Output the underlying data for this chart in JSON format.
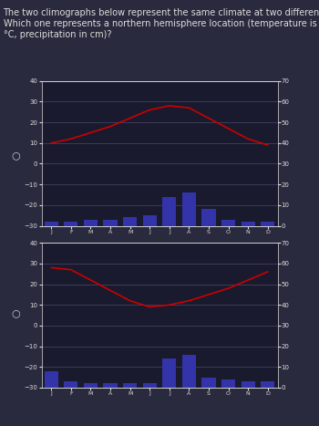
{
  "question_text": "The two climographs below represent the same climate at two different locations.\nWhich one represents a northern hemisphere location (temperature is measured in\n°C, precipitation in cm)?",
  "months": [
    "J",
    "F",
    "M",
    "A",
    "M",
    "J",
    "J",
    "A",
    "S",
    "O",
    "N",
    "D"
  ],
  "chart1": {
    "temp": [
      10,
      12,
      15,
      18,
      22,
      26,
      28,
      27,
      22,
      17,
      12,
      9
    ],
    "precip": [
      2,
      2,
      3,
      3,
      4,
      5,
      14,
      16,
      8,
      3,
      2,
      2
    ],
    "temp_color": "#cc0000",
    "precip_color": "#3333aa",
    "bg_color": "#1a1a2e",
    "grid_color": "#555577",
    "temp_ylim": [
      -30,
      40
    ],
    "precip_ylim": [
      0,
      70
    ],
    "temp_yticks": [
      -30,
      -20,
      -10,
      0,
      10,
      20,
      30,
      40
    ],
    "precip_yticks": [
      0,
      10,
      20,
      30,
      40,
      50,
      60,
      70
    ]
  },
  "chart2": {
    "temp": [
      28,
      27,
      22,
      17,
      12,
      9,
      10,
      12,
      15,
      18,
      22,
      26
    ],
    "precip": [
      8,
      3,
      2,
      2,
      2,
      2,
      14,
      16,
      5,
      4,
      3,
      3
    ],
    "temp_color": "#cc0000",
    "precip_color": "#3333aa",
    "bg_color": "#1a1a2e",
    "grid_color": "#555577",
    "temp_ylim": [
      -30,
      40
    ],
    "precip_ylim": [
      0,
      70
    ],
    "temp_yticks": [
      -30,
      -20,
      -10,
      0,
      10,
      20,
      30,
      40
    ],
    "precip_yticks": [
      0,
      10,
      20,
      30,
      40,
      50,
      60,
      70
    ]
  },
  "radio_color": "#cccccc",
  "text_color": "#dddddd",
  "bg_main": "#2a2a3e",
  "font_size_question": 7,
  "font_size_ticks": 5,
  "font_size_months": 4.5
}
